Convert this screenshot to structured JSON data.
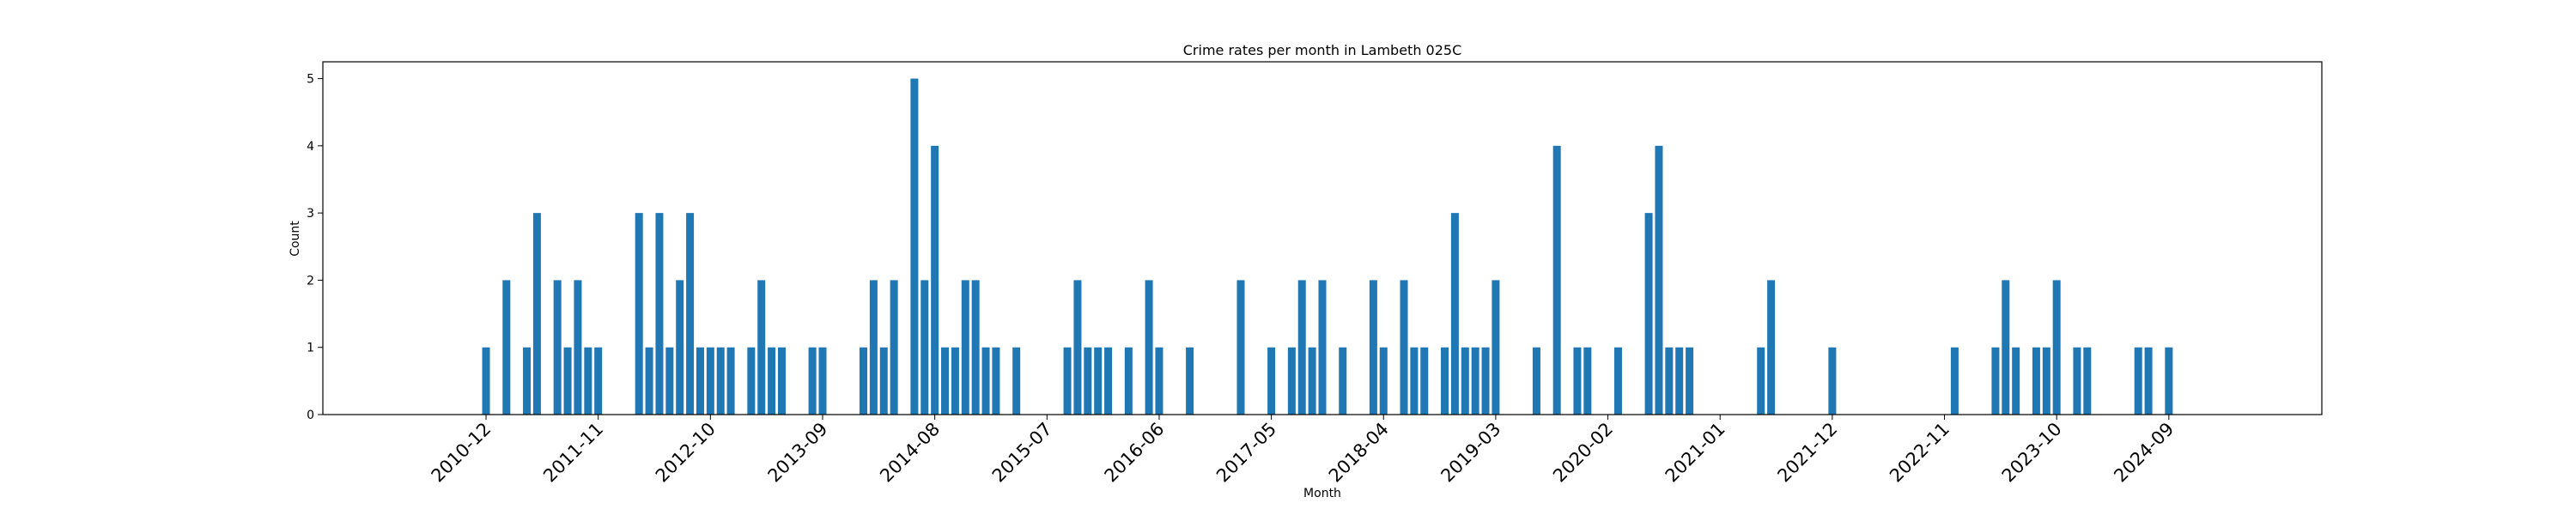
{
  "chart_data": {
    "type": "bar",
    "title": "Crime rates per month in Lambeth 025C",
    "xlabel": "Month",
    "ylabel": "Count",
    "ylim": [
      0,
      5.25
    ],
    "yticks": [
      0,
      1,
      2,
      3,
      4,
      5
    ],
    "xlim": [
      "2009-08",
      "2025-12"
    ],
    "x_tick_labels": [
      "2010-12",
      "2011-11",
      "2012-10",
      "2013-09",
      "2014-08",
      "2015-07",
      "2016-06",
      "2017-05",
      "2018-04",
      "2019-03",
      "2020-02",
      "2021-01",
      "2021-12",
      "2022-11",
      "2023-10",
      "2024-09"
    ],
    "bar_color": "#1f77b4",
    "grid": false,
    "legend": "none",
    "months": [
      "2010-12",
      "2011-02",
      "2011-04",
      "2011-05",
      "2011-07",
      "2011-08",
      "2011-09",
      "2011-10",
      "2011-11",
      "2012-03",
      "2012-04",
      "2012-05",
      "2012-06",
      "2012-07",
      "2012-08",
      "2012-09",
      "2012-10",
      "2012-11",
      "2012-12",
      "2013-02",
      "2013-03",
      "2013-04",
      "2013-05",
      "2013-08",
      "2013-09",
      "2014-01",
      "2014-02",
      "2014-03",
      "2014-04",
      "2014-06",
      "2014-07",
      "2014-08",
      "2014-09",
      "2014-10",
      "2014-11",
      "2014-12",
      "2015-01",
      "2015-02",
      "2015-04",
      "2015-09",
      "2015-10",
      "2015-11",
      "2015-12",
      "2016-01",
      "2016-03",
      "2016-05",
      "2016-06",
      "2016-09",
      "2017-02",
      "2017-05",
      "2017-07",
      "2017-08",
      "2017-09",
      "2017-10",
      "2017-12",
      "2018-03",
      "2018-04",
      "2018-06",
      "2018-07",
      "2018-08",
      "2018-10",
      "2018-11",
      "2018-12",
      "2019-01",
      "2019-02",
      "2019-03",
      "2019-07",
      "2019-09",
      "2019-11",
      "2019-12",
      "2020-03",
      "2020-06",
      "2020-07",
      "2020-08",
      "2020-09",
      "2020-10",
      "2021-05",
      "2021-06",
      "2021-12",
      "2022-12",
      "2023-04",
      "2023-05",
      "2023-06",
      "2023-08",
      "2023-09",
      "2023-10",
      "2023-12",
      "2024-01",
      "2024-06",
      "2024-07",
      "2024-09"
    ],
    "values": [
      1,
      2,
      1,
      3,
      2,
      1,
      2,
      1,
      1,
      3,
      1,
      3,
      1,
      2,
      3,
      1,
      1,
      1,
      1,
      1,
      2,
      1,
      1,
      1,
      1,
      1,
      2,
      1,
      2,
      5,
      2,
      4,
      1,
      1,
      2,
      2,
      1,
      1,
      1,
      1,
      2,
      1,
      1,
      1,
      1,
      2,
      1,
      1,
      2,
      1,
      1,
      2,
      1,
      2,
      1,
      2,
      1,
      2,
      1,
      1,
      1,
      3,
      1,
      1,
      1,
      2,
      1,
      4,
      1,
      1,
      1,
      3,
      4,
      1,
      1,
      1,
      1,
      2,
      1,
      1,
      1,
      2,
      1,
      1,
      1,
      2,
      1,
      1,
      1,
      1,
      1
    ]
  }
}
